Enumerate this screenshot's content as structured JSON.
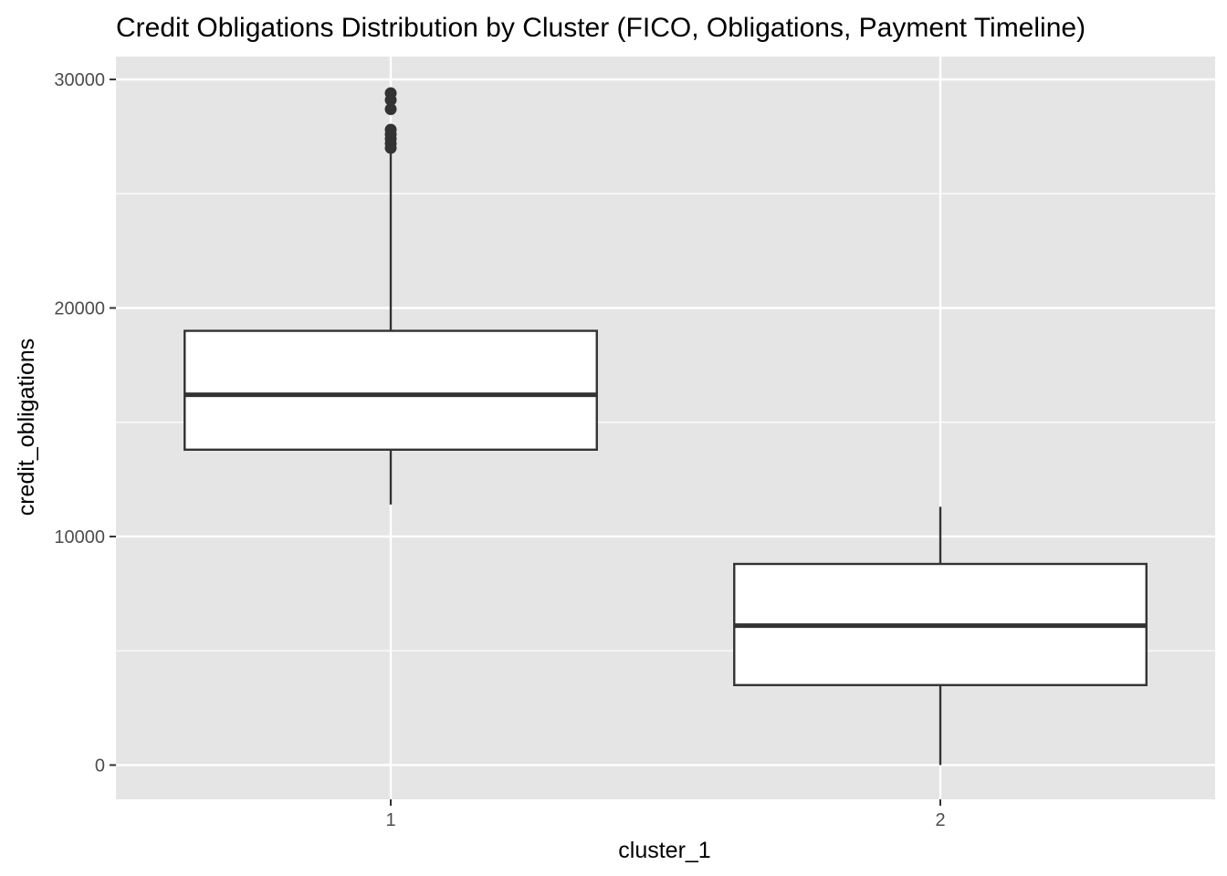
{
  "chart_data": {
    "type": "boxplot",
    "title": "Credit Obligations Distribution by Cluster (FICO, Obligations, Payment Timeline)",
    "xlabel": "cluster_1",
    "ylabel": "credit_obligations",
    "categories": [
      "1",
      "2"
    ],
    "ylim": [
      -1500,
      31000
    ],
    "y_ticks": [
      0,
      10000,
      20000,
      30000
    ],
    "grid": true,
    "boxes": [
      {
        "category": "1",
        "whisker_low": 11400,
        "q1": 13800,
        "median": 16200,
        "q3": 19000,
        "whisker_high": 26900,
        "outliers": [
          27000,
          27200,
          27400,
          27600,
          27800,
          28700,
          29100,
          29400
        ]
      },
      {
        "category": "2",
        "whisker_low": 0,
        "q1": 3500,
        "median": 6100,
        "q3": 8800,
        "whisker_high": 11300,
        "outliers": []
      }
    ],
    "colors": {
      "panel": "#e5e5e5",
      "grid": "#ffffff",
      "box_fill": "#ffffff",
      "box_stroke": "#333333",
      "tick_text": "#4d4d4d"
    }
  }
}
